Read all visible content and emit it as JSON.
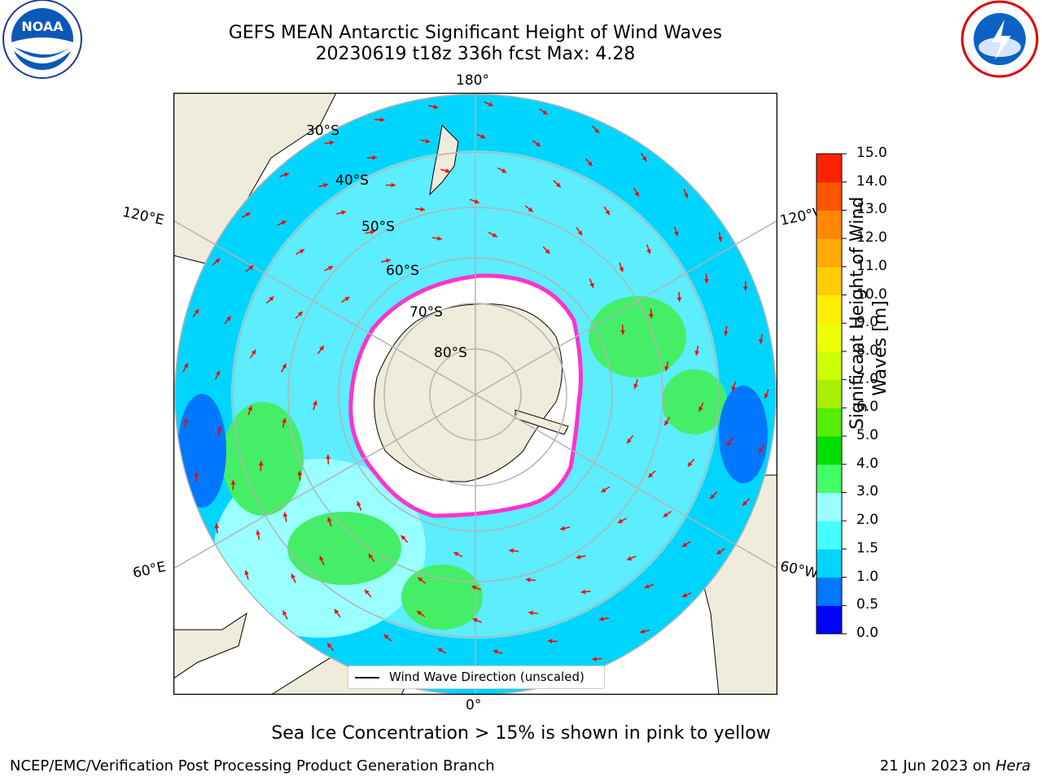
{
  "header": {
    "title_line1": "GEFS MEAN Antarctic Significant Height of Wind Waves",
    "title_line2": "20230619 t18z 336h fcst   Max: 4.28"
  },
  "logos": {
    "left": {
      "name": "noaa-logo",
      "text": "NOAA",
      "ring_text": "NATIONAL OCEANIC AND ATMOSPHERIC ADMINISTRATION · U.S. DEPARTMENT OF COMMERCE"
    },
    "right": {
      "name": "nws-logo",
      "ring_text": "NATIONAL WEATHER SERVICE"
    }
  },
  "map": {
    "projection": "south-polar-stereographic",
    "lon_labels": {
      "top": "180°",
      "upper_left": "120°E",
      "upper_right": "120°W",
      "lower_left": "60°E",
      "lower_right": "60°W",
      "bottom": "0°"
    },
    "lat_labels": [
      "30°S",
      "40°S",
      "50°S",
      "60°S",
      "70°S",
      "80°S"
    ],
    "colors": {
      "land": "#efecdc",
      "ocean_base": "#00d5ff",
      "ice": "#ffffff",
      "ice_edge": "#ff33cc",
      "arrow": "#ff0000",
      "grid": "#b3b3b3"
    }
  },
  "legend": {
    "label": "Wind Wave Direction (unscaled)"
  },
  "colorbar": {
    "label_line1": "Significant Height of Wind",
    "label_line2": "Waves [m]",
    "ticks": [
      "0.0",
      "0.5",
      "1.0",
      "1.5",
      "2.0",
      "3.0",
      "4.0",
      "5.0",
      "6.0",
      "7.0",
      "8.0",
      "9.0",
      "10.0",
      "11.0",
      "12.0",
      "13.0",
      "14.0",
      "15.0"
    ],
    "colors": [
      "#0000ff",
      "#0077ff",
      "#00d5ff",
      "#44ffff",
      "#99ffff",
      "#44ff66",
      "#00dd00",
      "#55ee00",
      "#aaee00",
      "#ccff00",
      "#eeff00",
      "#ffee00",
      "#ffcc00",
      "#ffaa00",
      "#ff8800",
      "#ff5500",
      "#ff2200"
    ]
  },
  "footer": {
    "note": "Sea Ice Concentration > 15% is shown in pink to yellow",
    "left": "NCEP/EMC/Verification Post Processing Product Generation Branch",
    "right_prefix": "21 Jun 2023 on ",
    "right_machine": "Hera"
  }
}
